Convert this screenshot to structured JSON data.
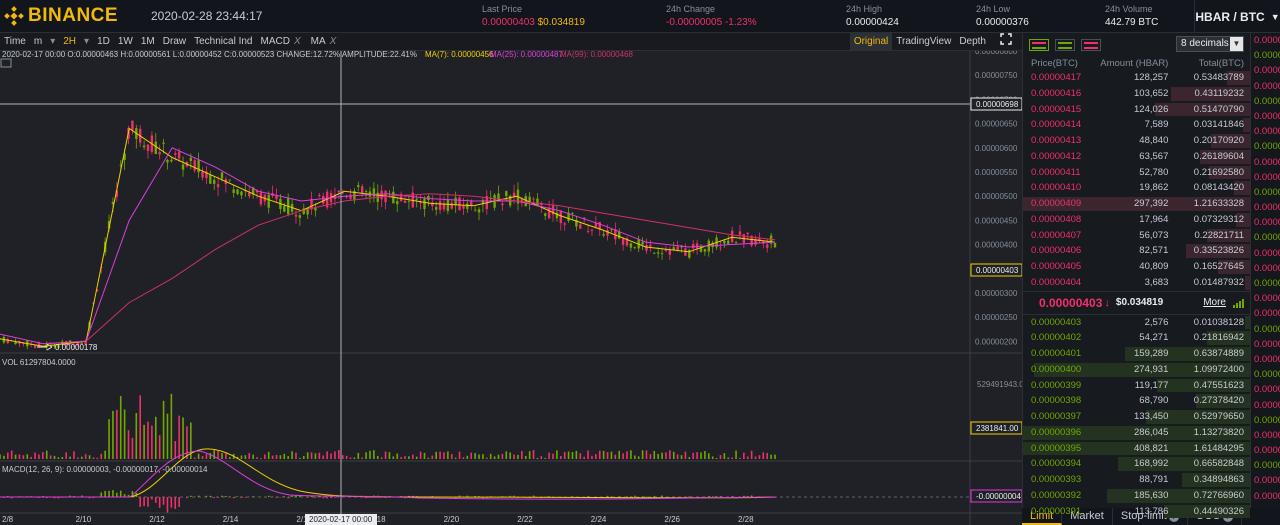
{
  "header": {
    "logo_text": "BINANCE",
    "datetime": "2020-02-28 23:44:17",
    "last_price": {
      "label": "Last Price",
      "value": "0.00000403",
      "usd": "$0.034819"
    },
    "change": {
      "label": "24h Change",
      "value": "-0.00000005",
      "pct": "-1.23%"
    },
    "high": {
      "label": "24h High",
      "value": "0.00000424"
    },
    "low": {
      "label": "24h Low",
      "value": "0.00000376"
    },
    "volume": {
      "label": "24h Volume",
      "value": "442.79 BTC"
    },
    "pair": "HBAR / BTC"
  },
  "toolbar": {
    "left": [
      "Time",
      "m",
      "2H",
      "1D",
      "1W",
      "1M",
      "Draw",
      "Technical Ind"
    ],
    "active": "2H",
    "macd": "MACD",
    "ma": "MA",
    "close_glyph": "X",
    "right": [
      "Original",
      "TradingView",
      "Depth"
    ]
  },
  "chart": {
    "info_line": "2020-02-17 00:00  O:0.00000463 H:0.00000561 L:0.00000452 C:0.00000523 CHANGE:12.72% AMPLITUDE:22.41%",
    "ma7": "MA(7): 0.00000456",
    "ma25": "MA(25): 0.00000487",
    "ma99": "MA(99): 0.00000468",
    "price_ticks": [
      "0.00000800",
      "0.00000750",
      "0.00000700",
      "0.00000650",
      "0.00000600",
      "0.00000550",
      "0.00000500",
      "0.00000450",
      "0.00000400",
      "0.00000350",
      "0.00000300",
      "0.00000250",
      "0.00000200"
    ],
    "crosshair_price": "0.00000698",
    "current_price_tag": "0.00000403",
    "low_marker": "0.00000178",
    "vol_label": "VOL 61297804.0000",
    "vol_max": "529491943.00",
    "vol_tag": "2381841.00",
    "macd_label": "MACD(12, 26, 9): 0.00000003, -0.00000017, -0.00000014",
    "macd_tag": "-0.00000004",
    "x_labels": [
      "2/8",
      "2/10",
      "2/12",
      "2/14",
      "2/16",
      "2/18",
      "2/20",
      "2/22",
      "2/24",
      "2/26",
      "2/28"
    ],
    "crosshair_time": "2020-02-17 00:00",
    "colors": {
      "up": "#70a800",
      "down": "#f0306a",
      "ma7": "#f0d000",
      "ma25": "#e03ce0",
      "ma99": "#d0306a"
    }
  },
  "chart_data": {
    "type": "line",
    "title": "",
    "x": [
      "2/8",
      "2/10",
      "2/12",
      "2/13",
      "2/14",
      "2/15",
      "2/16",
      "2/17",
      "2/18",
      "2/19",
      "2/20",
      "2/21",
      "2/22",
      "2/23",
      "2/24",
      "2/25",
      "2/26",
      "2/27",
      "2/28"
    ],
    "series": [
      {
        "name": "MA(7)",
        "values": [
          2.05e-06,
          1.9e-06,
          2e-06,
          6.4e-06,
          5.8e-06,
          5.4e-06,
          5e-06,
          4.7e-06,
          5.1e-06,
          5e-06,
          4.85e-06,
          4.8e-06,
          5e-06,
          4.6e-06,
          4.3e-06,
          3.95e-06,
          3.85e-06,
          4.15e-06,
          4.05e-06
        ]
      },
      {
        "name": "MA(25)",
        "values": [
          2.15e-06,
          1.95e-06,
          2e-06,
          4.5e-06,
          6e-06,
          5.6e-06,
          5.1e-06,
          4.9e-06,
          5e-06,
          5.05e-06,
          4.95e-06,
          4.9e-06,
          4.9e-06,
          4.7e-06,
          4.4e-06,
          4.05e-06,
          3.95e-06,
          4e-06,
          4.05e-06
        ]
      },
      {
        "name": "MA(99)",
        "values": [
          null,
          null,
          2e-06,
          2.8e-06,
          3.3e-06,
          3.9e-06,
          4.4e-06,
          4.7e-06,
          4.9e-06,
          5e-06,
          5.05e-06,
          5e-06,
          4.9e-06,
          4.8e-06,
          4.65e-06,
          4.5e-06,
          4.35e-06,
          4.2e-06,
          4.1e-06
        ]
      }
    ],
    "ylim": [
      1.8e-06,
      8e-06
    ],
    "xlabel": "",
    "ylabel": ""
  },
  "orderbook": {
    "groups_label": "groups",
    "decimals": "8 decimals",
    "headers": [
      "Price(BTC)",
      "Amount (HBAR)",
      "Total(BTC)"
    ],
    "asks": [
      {
        "p": "0.00000417",
        "a": "128,257",
        "t": "0.53483789",
        "d": 0.1
      },
      {
        "p": "0.00000416",
        "a": "103,652",
        "t": "0.43119232",
        "d": 0.35
      },
      {
        "p": "0.00000415",
        "a": "124,026",
        "t": "0.51470790",
        "d": 0.42
      },
      {
        "p": "0.00000414",
        "a": "7,589",
        "t": "0.03141846",
        "d": 0.03
      },
      {
        "p": "0.00000413",
        "a": "48,840",
        "t": "0.20170920",
        "d": 0.17
      },
      {
        "p": "0.00000412",
        "a": "63,567",
        "t": "0.26189604",
        "d": 0.22
      },
      {
        "p": "0.00000411",
        "a": "52,780",
        "t": "0.21692580",
        "d": 0.18
      },
      {
        "p": "0.00000410",
        "a": "19,862",
        "t": "0.08143420",
        "d": 0.07
      },
      {
        "p": "0.00000409",
        "a": "297,392",
        "t": "1.21633328",
        "d": 1.0
      },
      {
        "p": "0.00000408",
        "a": "17,964",
        "t": "0.07329312",
        "d": 0.06
      },
      {
        "p": "0.00000407",
        "a": "56,073",
        "t": "0.22821711",
        "d": 0.19
      },
      {
        "p": "0.00000406",
        "a": "82,571",
        "t": "0.33523826",
        "d": 0.28
      },
      {
        "p": "0.00000405",
        "a": "40,809",
        "t": "0.16527645",
        "d": 0.14
      },
      {
        "p": "0.00000404",
        "a": "3,683",
        "t": "0.01487932",
        "d": 0.02
      }
    ],
    "mid": {
      "price": "0.00000403",
      "arrow": "↓",
      "usd": "$0.034819",
      "more": "More"
    },
    "bids": [
      {
        "p": "0.00000403",
        "a": "2,576",
        "t": "0.01038128",
        "d": 0.02
      },
      {
        "p": "0.00000402",
        "a": "54,271",
        "t": "0.21816942",
        "d": 0.19
      },
      {
        "p": "0.00000401",
        "a": "159,289",
        "t": "0.63874889",
        "d": 0.55
      },
      {
        "p": "0.00000400",
        "a": "274,931",
        "t": "1.09972400",
        "d": 0.95
      },
      {
        "p": "0.00000399",
        "a": "119,177",
        "t": "0.47551623",
        "d": 0.41
      },
      {
        "p": "0.00000398",
        "a": "68,790",
        "t": "0.27378420",
        "d": 0.24
      },
      {
        "p": "0.00000397",
        "a": "133,450",
        "t": "0.52979650",
        "d": 0.46
      },
      {
        "p": "0.00000396",
        "a": "286,045",
        "t": "1.13273820",
        "d": 1.0
      },
      {
        "p": "0.00000395",
        "a": "408,821",
        "t": "1.61484295",
        "d": 1.0
      },
      {
        "p": "0.00000394",
        "a": "168,992",
        "t": "0.66582848",
        "d": 0.58
      },
      {
        "p": "0.00000393",
        "a": "88,791",
        "t": "0.34894863",
        "d": 0.3
      },
      {
        "p": "0.00000392",
        "a": "185,630",
        "t": "0.72766960",
        "d": 0.63
      },
      {
        "p": "0.00000391",
        "a": "113,786",
        "t": "0.44490326",
        "d": 0.38
      }
    ]
  },
  "tabs": [
    "Limit",
    "Market",
    "Stop-limit",
    "OCO"
  ],
  "tab_help_glyph": "?",
  "trades": [
    "0.0000",
    "0.0000",
    "0.0000",
    "0.0000",
    "0.0000",
    "0.0000",
    "0.0000",
    "0.0000",
    "0.0000",
    "0.0000",
    "0.0000",
    "0.0000",
    "0.0000",
    "0.0000",
    "0.0000",
    "0.0000",
    "0.0000",
    "0.0000",
    "0.0000",
    "0.0000",
    "0.0000",
    "0.0000",
    "0.0000",
    "0.0000",
    "0.0000",
    "0.0000",
    "0.0000",
    "0.0000",
    "0.0000",
    "0.0000",
    "0.0000"
  ]
}
